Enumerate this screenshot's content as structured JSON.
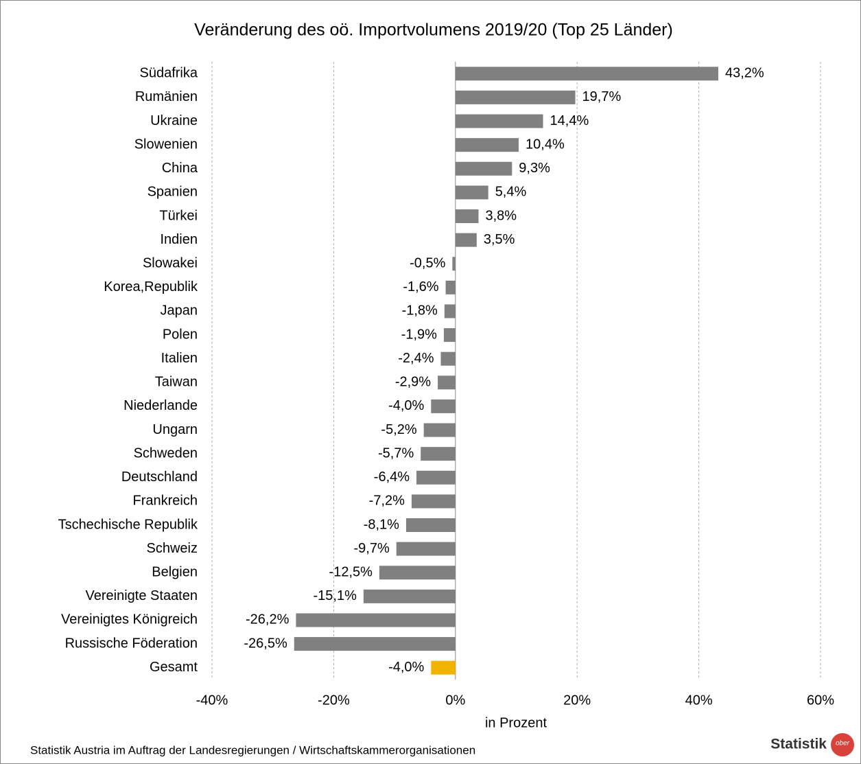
{
  "chart_data": {
    "type": "barh",
    "title": "Veränderung des oö. Importvolumens 2019/20 (Top 25 Länder)",
    "categories": [
      "Südafrika",
      "Rumänien",
      "Ukraine",
      "Slowenien",
      "China",
      "Spanien",
      "Türkei",
      "Indien",
      "Slowakei",
      "Korea,Republik",
      "Japan",
      "Polen",
      "Italien",
      "Taiwan",
      "Niederlande",
      "Ungarn",
      "Schweden",
      "Deutschland",
      "Frankreich",
      "Tschechische Republik",
      "Schweiz",
      "Belgien",
      "Vereinigte Staaten",
      "Vereinigtes Königreich",
      "Russische Föderation",
      "Gesamt"
    ],
    "values": [
      43.2,
      19.7,
      14.4,
      10.4,
      9.3,
      5.4,
      3.8,
      3.5,
      -0.5,
      -1.6,
      -1.8,
      -1.9,
      -2.4,
      -2.9,
      -4.0,
      -5.2,
      -5.7,
      -6.4,
      -7.2,
      -8.1,
      -9.7,
      -12.5,
      -15.1,
      -26.2,
      -26.5,
      -4.0
    ],
    "value_labels": [
      "43,2%",
      "19,7%",
      "14,4%",
      "10,4%",
      "9,3%",
      "5,4%",
      "3,8%",
      "3,5%",
      "-0,5%",
      "-1,6%",
      "-1,8%",
      "-1,9%",
      "-2,4%",
      "-2,9%",
      "-4,0%",
      "-5,2%",
      "-5,7%",
      "-6,4%",
      "-7,2%",
      "-8,1%",
      "-9,7%",
      "-12,5%",
      "-15,1%",
      "-26,2%",
      "-26,5%",
      "-4,0%"
    ],
    "colors": [
      "#808080",
      "#808080",
      "#808080",
      "#808080",
      "#808080",
      "#808080",
      "#808080",
      "#808080",
      "#808080",
      "#808080",
      "#808080",
      "#808080",
      "#808080",
      "#808080",
      "#808080",
      "#808080",
      "#808080",
      "#808080",
      "#808080",
      "#808080",
      "#808080",
      "#808080",
      "#808080",
      "#808080",
      "#808080",
      "#f0b400"
    ],
    "xlim": [
      -40,
      60
    ],
    "xticks": [
      {
        "value": -40,
        "label": "-40%"
      },
      {
        "value": -20,
        "label": "-20%"
      },
      {
        "value": 0,
        "label": "0%"
      },
      {
        "value": 20,
        "label": "20%"
      },
      {
        "value": 40,
        "label": "40%"
      },
      {
        "value": 60,
        "label": "60%"
      }
    ],
    "x_label": "in Prozent",
    "grid": true,
    "source": "Statistik Austria im Auftrag der Landesregierungen / Wirtschaftskammerorganisationen",
    "logo": {
      "text": "Statistik",
      "badge": "ober"
    }
  }
}
